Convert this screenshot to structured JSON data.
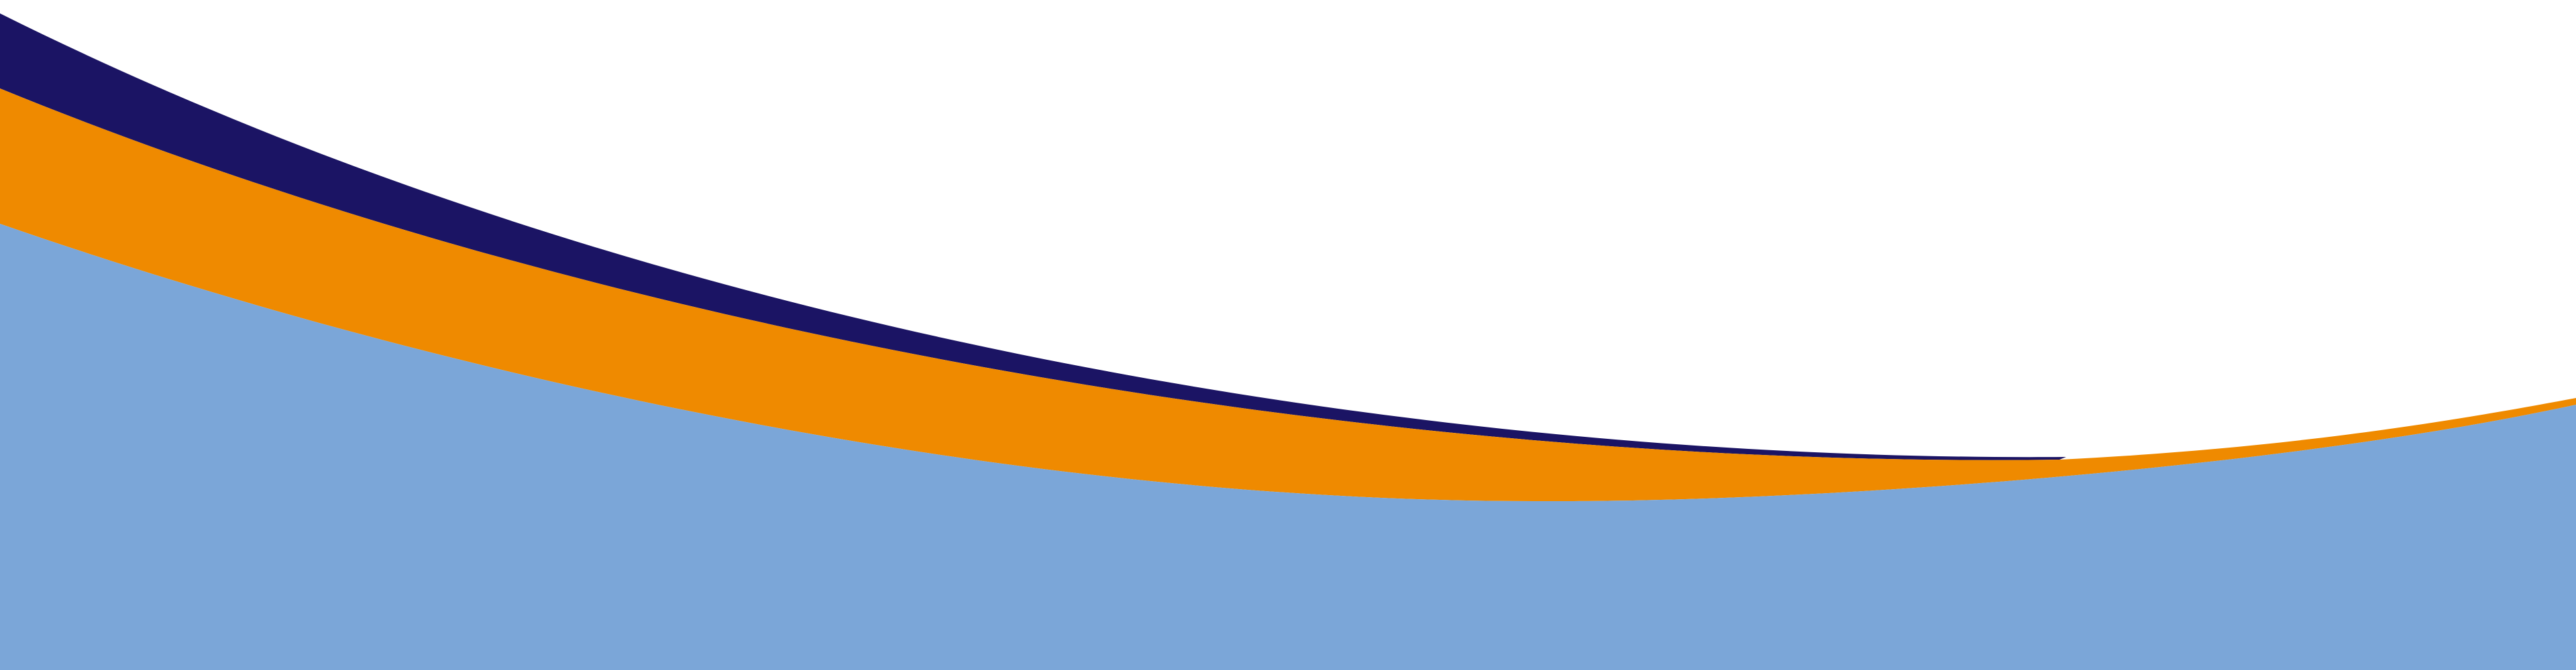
{
  "image": {
    "kind": "decorative-wave-banner",
    "background_color": "#ffffff",
    "bands": [
      {
        "name": "navy-wave-band",
        "color": "#1b1464"
      },
      {
        "name": "orange-wave-band",
        "color": "#ef8a00"
      },
      {
        "name": "light-blue-wave-fill",
        "color": "#7ba6d8"
      }
    ]
  }
}
